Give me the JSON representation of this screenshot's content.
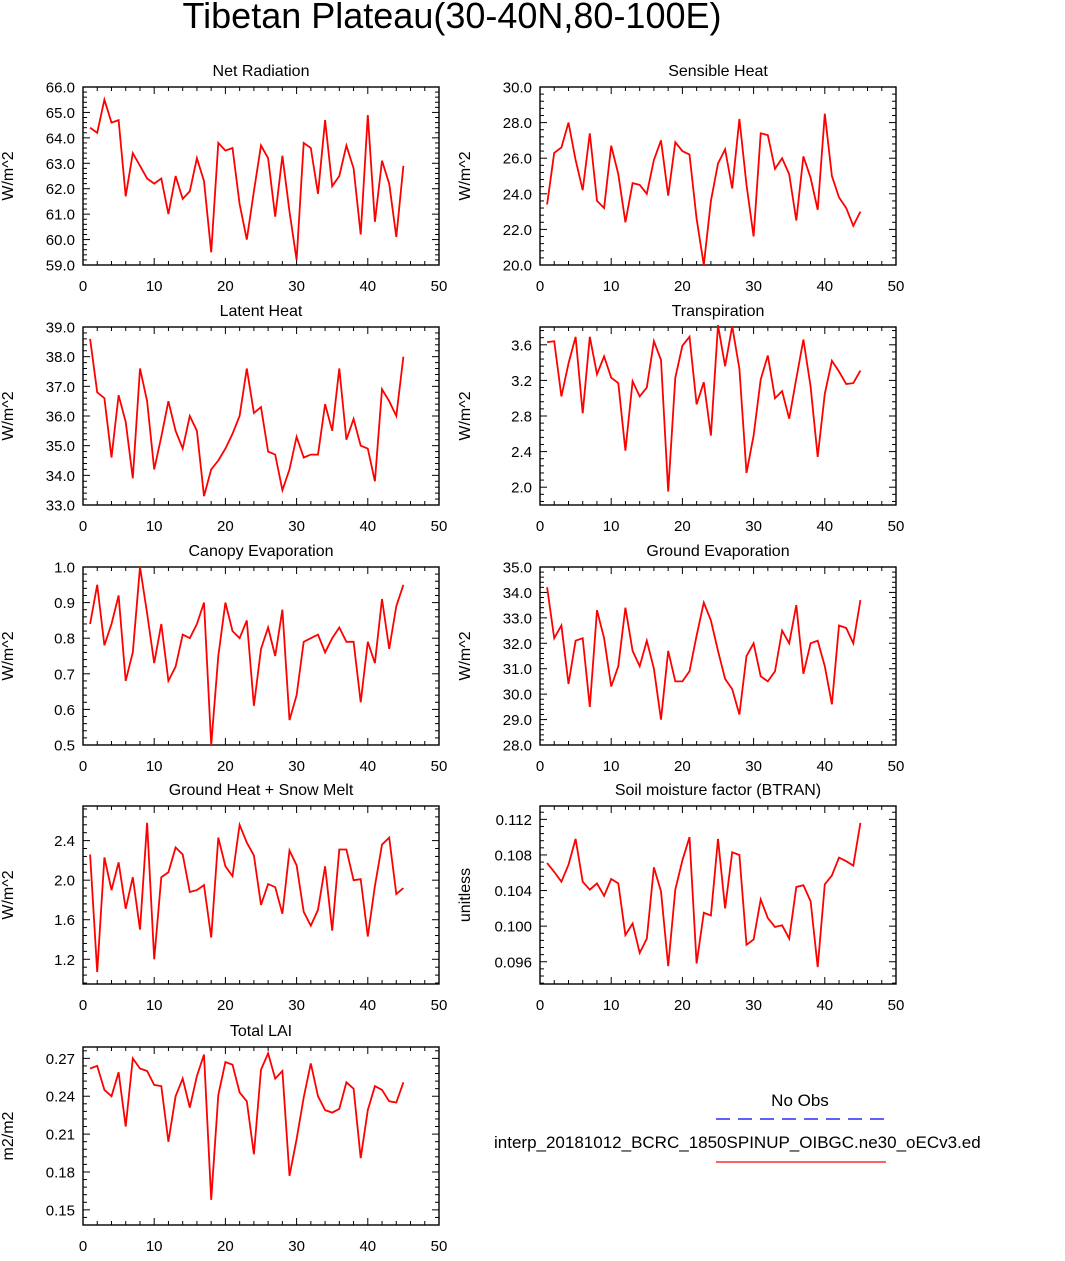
{
  "figure": {
    "title": "Tibetan Plateau(30-40N,80-100E)",
    "legend": {
      "obs_label": "No Obs",
      "model_label": "interp_20181012_BCRC_1850SPINUP_OIBGC.ne30_oECv3.ed",
      "obs_color": "#0000ff",
      "model_color": "#ff0000"
    }
  },
  "chart_data": [
    {
      "type": "line",
      "title": "Net Radiation",
      "ylabel": "W/m^2",
      "xlim": [
        0,
        50
      ],
      "ylim": [
        59.0,
        66.0
      ],
      "xticks": [
        0,
        10,
        20,
        30,
        40,
        50
      ],
      "yticks": [
        59.0,
        60.0,
        61.0,
        62.0,
        63.0,
        64.0,
        65.0,
        66.0
      ],
      "ytick_labels": [
        "59.0",
        "60.0",
        "61.0",
        "62.0",
        "63.0",
        "64.0",
        "65.0",
        "66.0"
      ],
      "series": [
        {
          "color": "#ff0000",
          "values": [
            64.4,
            64.2,
            65.5,
            64.6,
            64.7,
            61.7,
            63.4,
            62.9,
            62.4,
            62.2,
            62.4,
            61.0,
            62.5,
            61.6,
            61.9,
            63.2,
            62.3,
            59.5,
            63.8,
            63.5,
            63.6,
            61.4,
            60.0,
            61.9,
            63.7,
            63.2,
            60.9,
            63.3,
            61.1,
            59.2,
            63.8,
            63.6,
            61.8,
            64.7,
            62.1,
            62.5,
            63.7,
            62.8,
            60.2,
            64.9,
            60.7,
            63.1,
            62.2,
            60.1,
            62.9
          ]
        }
      ]
    },
    {
      "type": "line",
      "title": "Sensible Heat",
      "ylabel": "W/m^2",
      "xlim": [
        0,
        50
      ],
      "ylim": [
        20.0,
        30.0
      ],
      "xticks": [
        0,
        10,
        20,
        30,
        40,
        50
      ],
      "yticks": [
        20.0,
        22.0,
        24.0,
        26.0,
        28.0,
        30.0
      ],
      "ytick_labels": [
        "20.0",
        "22.0",
        "24.0",
        "26.0",
        "28.0",
        "30.0"
      ],
      "series": [
        {
          "color": "#ff0000",
          "values": [
            23.4,
            26.3,
            26.6,
            28.0,
            25.9,
            24.2,
            27.4,
            23.6,
            23.2,
            26.7,
            25.1,
            22.4,
            24.6,
            24.5,
            24.0,
            25.9,
            27.0,
            23.9,
            26.9,
            26.4,
            26.2,
            22.6,
            20.0,
            23.6,
            25.7,
            26.5,
            24.3,
            28.2,
            24.5,
            21.6,
            27.4,
            27.3,
            25.4,
            26.0,
            25.1,
            22.5,
            26.1,
            24.9,
            23.1,
            28.5,
            25.0,
            23.8,
            23.2,
            22.2,
            23.0
          ]
        }
      ]
    },
    {
      "type": "line",
      "title": "Latent Heat",
      "ylabel": "W/m^2",
      "xlim": [
        0,
        50
      ],
      "ylim": [
        33.0,
        39.0
      ],
      "xticks": [
        0,
        10,
        20,
        30,
        40,
        50
      ],
      "yticks": [
        33.0,
        34.0,
        35.0,
        36.0,
        37.0,
        38.0,
        39.0
      ],
      "ytick_labels": [
        "33.0",
        "34.0",
        "35.0",
        "36.0",
        "37.0",
        "38.0",
        "39.0"
      ],
      "series": [
        {
          "color": "#ff0000",
          "values": [
            38.6,
            36.8,
            36.6,
            34.6,
            36.7,
            35.8,
            33.9,
            37.6,
            36.5,
            34.2,
            35.3,
            36.5,
            35.5,
            34.9,
            36.0,
            35.5,
            33.3,
            34.2,
            34.5,
            34.9,
            35.4,
            36.0,
            37.6,
            36.1,
            36.3,
            34.8,
            34.7,
            33.5,
            34.2,
            35.3,
            34.6,
            34.7,
            34.7,
            36.4,
            35.5,
            37.6,
            35.2,
            35.9,
            35.0,
            34.9,
            33.8,
            36.9,
            36.5,
            36.0,
            38.0
          ]
        }
      ]
    },
    {
      "type": "line",
      "title": "Transpiration",
      "ylabel": "W/m^2",
      "xlim": [
        0,
        50
      ],
      "ylim": [
        1.8,
        3.8
      ],
      "xticks": [
        0,
        10,
        20,
        30,
        40,
        50
      ],
      "yticks": [
        2.0,
        2.4,
        2.8,
        3.2,
        3.6
      ],
      "ytick_labels": [
        "2.0",
        "2.4",
        "2.8",
        "3.2",
        "3.6"
      ],
      "series": [
        {
          "color": "#ff0000",
          "values": [
            3.63,
            3.64,
            3.02,
            3.39,
            3.69,
            2.83,
            3.69,
            3.27,
            3.47,
            3.23,
            3.17,
            2.41,
            3.19,
            3.02,
            3.12,
            3.64,
            3.43,
            1.95,
            3.23,
            3.59,
            3.69,
            2.93,
            3.18,
            2.58,
            3.82,
            3.36,
            3.81,
            3.33,
            2.16,
            2.58,
            3.21,
            3.48,
            3.0,
            3.08,
            2.77,
            3.22,
            3.66,
            3.13,
            2.34,
            3.05,
            3.42,
            3.3,
            3.16,
            3.17,
            3.31
          ]
        }
      ]
    },
    {
      "type": "line",
      "title": "Canopy Evaporation",
      "ylabel": "W/m^2",
      "xlim": [
        0,
        50
      ],
      "ylim": [
        0.5,
        1.0
      ],
      "xticks": [
        0,
        10,
        20,
        30,
        40,
        50
      ],
      "yticks": [
        0.5,
        0.6,
        0.7,
        0.8,
        0.9,
        1.0
      ],
      "ytick_labels": [
        "0.5",
        "0.6",
        "0.7",
        "0.8",
        "0.9",
        "1.0"
      ],
      "series": [
        {
          "color": "#ff0000",
          "values": [
            0.84,
            0.95,
            0.78,
            0.84,
            0.92,
            0.68,
            0.76,
            1.0,
            0.87,
            0.73,
            0.84,
            0.68,
            0.72,
            0.81,
            0.8,
            0.84,
            0.9,
            0.5,
            0.75,
            0.9,
            0.82,
            0.8,
            0.85,
            0.61,
            0.77,
            0.83,
            0.75,
            0.88,
            0.57,
            0.64,
            0.79,
            0.8,
            0.81,
            0.76,
            0.8,
            0.83,
            0.79,
            0.79,
            0.62,
            0.79,
            0.73,
            0.91,
            0.77,
            0.89,
            0.95
          ]
        }
      ]
    },
    {
      "type": "line",
      "title": "Ground Evaporation",
      "ylabel": "W/m^2",
      "xlim": [
        0,
        50
      ],
      "ylim": [
        28.0,
        35.0
      ],
      "xticks": [
        0,
        10,
        20,
        30,
        40,
        50
      ],
      "yticks": [
        28.0,
        29.0,
        30.0,
        31.0,
        32.0,
        33.0,
        34.0,
        35.0
      ],
      "ytick_labels": [
        "28.0",
        "29.0",
        "30.0",
        "31.0",
        "32.0",
        "33.0",
        "34.0",
        "35.0"
      ],
      "series": [
        {
          "color": "#ff0000",
          "values": [
            34.2,
            32.2,
            32.7,
            30.4,
            32.1,
            32.2,
            29.5,
            33.3,
            32.2,
            30.3,
            31.1,
            33.4,
            31.7,
            31.1,
            32.1,
            31.0,
            29.0,
            31.7,
            30.5,
            30.5,
            30.9,
            32.3,
            33.6,
            32.9,
            31.7,
            30.6,
            30.2,
            29.2,
            31.5,
            32.0,
            30.7,
            30.5,
            30.9,
            32.5,
            32.0,
            33.5,
            30.8,
            32.0,
            32.1,
            31.1,
            29.6,
            32.7,
            32.6,
            32.0,
            33.7
          ]
        }
      ]
    },
    {
      "type": "line",
      "title": "Ground Heat + Snow Melt",
      "ylabel": "W/m^2",
      "xlim": [
        0,
        50
      ],
      "ylim": [
        0.95,
        2.75
      ],
      "xticks": [
        0,
        10,
        20,
        30,
        40,
        50
      ],
      "yticks": [
        1.2,
        1.6,
        2.0,
        2.4
      ],
      "ytick_labels": [
        "1.2",
        "1.6",
        "2.0",
        "2.4"
      ],
      "series": [
        {
          "color": "#ff0000",
          "values": [
            2.26,
            1.07,
            2.23,
            1.9,
            2.18,
            1.71,
            2.03,
            1.5,
            2.58,
            1.2,
            2.03,
            2.08,
            2.33,
            2.26,
            1.88,
            1.9,
            1.95,
            1.42,
            2.43,
            2.14,
            2.04,
            2.56,
            2.38,
            2.25,
            1.75,
            1.96,
            1.93,
            1.66,
            2.3,
            2.15,
            1.68,
            1.54,
            1.7,
            2.14,
            1.49,
            2.31,
            2.31,
            2.0,
            2.01,
            1.43,
            1.94,
            2.36,
            2.43,
            1.86,
            1.92
          ]
        }
      ]
    },
    {
      "type": "line",
      "title": "Soil moisture factor (BTRAN)",
      "ylabel": "unitless",
      "xlim": [
        0,
        50
      ],
      "ylim": [
        0.0935,
        0.1135
      ],
      "xticks": [
        0,
        10,
        20,
        30,
        40,
        50
      ],
      "yticks": [
        0.096,
        0.1,
        0.104,
        0.108,
        0.112
      ],
      "ytick_labels": [
        "0.096",
        "0.100",
        "0.104",
        "0.108",
        "0.112"
      ],
      "series": [
        {
          "color": "#ff0000",
          "values": [
            0.1071,
            0.1061,
            0.105,
            0.1069,
            0.1098,
            0.105,
            0.1041,
            0.1048,
            0.1034,
            0.1053,
            0.1048,
            0.099,
            0.1003,
            0.097,
            0.0986,
            0.1066,
            0.1039,
            0.0955,
            0.1041,
            0.1074,
            0.11,
            0.0958,
            0.1015,
            0.1012,
            0.1098,
            0.102,
            0.1083,
            0.108,
            0.0979,
            0.0985,
            0.103,
            0.1009,
            0.0999,
            0.1001,
            0.0986,
            0.1044,
            0.1046,
            0.1028,
            0.0954,
            0.1047,
            0.1057,
            0.1077,
            0.1073,
            0.1068,
            0.1116
          ]
        }
      ]
    },
    {
      "type": "line",
      "title": "Total LAI",
      "ylabel": "m2/m2",
      "xlim": [
        0,
        50
      ],
      "ylim": [
        0.138,
        0.279
      ],
      "xticks": [
        0,
        10,
        20,
        30,
        40,
        50
      ],
      "yticks": [
        0.15,
        0.18,
        0.21,
        0.24,
        0.27
      ],
      "ytick_labels": [
        "0.15",
        "0.18",
        "0.21",
        "0.24",
        "0.27"
      ],
      "series": [
        {
          "color": "#ff0000",
          "values": [
            0.262,
            0.264,
            0.245,
            0.24,
            0.259,
            0.216,
            0.27,
            0.262,
            0.26,
            0.249,
            0.248,
            0.204,
            0.24,
            0.254,
            0.231,
            0.256,
            0.273,
            0.158,
            0.241,
            0.267,
            0.265,
            0.243,
            0.236,
            0.194,
            0.261,
            0.274,
            0.254,
            0.26,
            0.177,
            0.206,
            0.239,
            0.266,
            0.24,
            0.229,
            0.227,
            0.23,
            0.251,
            0.246,
            0.191,
            0.229,
            0.248,
            0.245,
            0.236,
            0.235,
            0.251
          ]
        }
      ]
    }
  ]
}
